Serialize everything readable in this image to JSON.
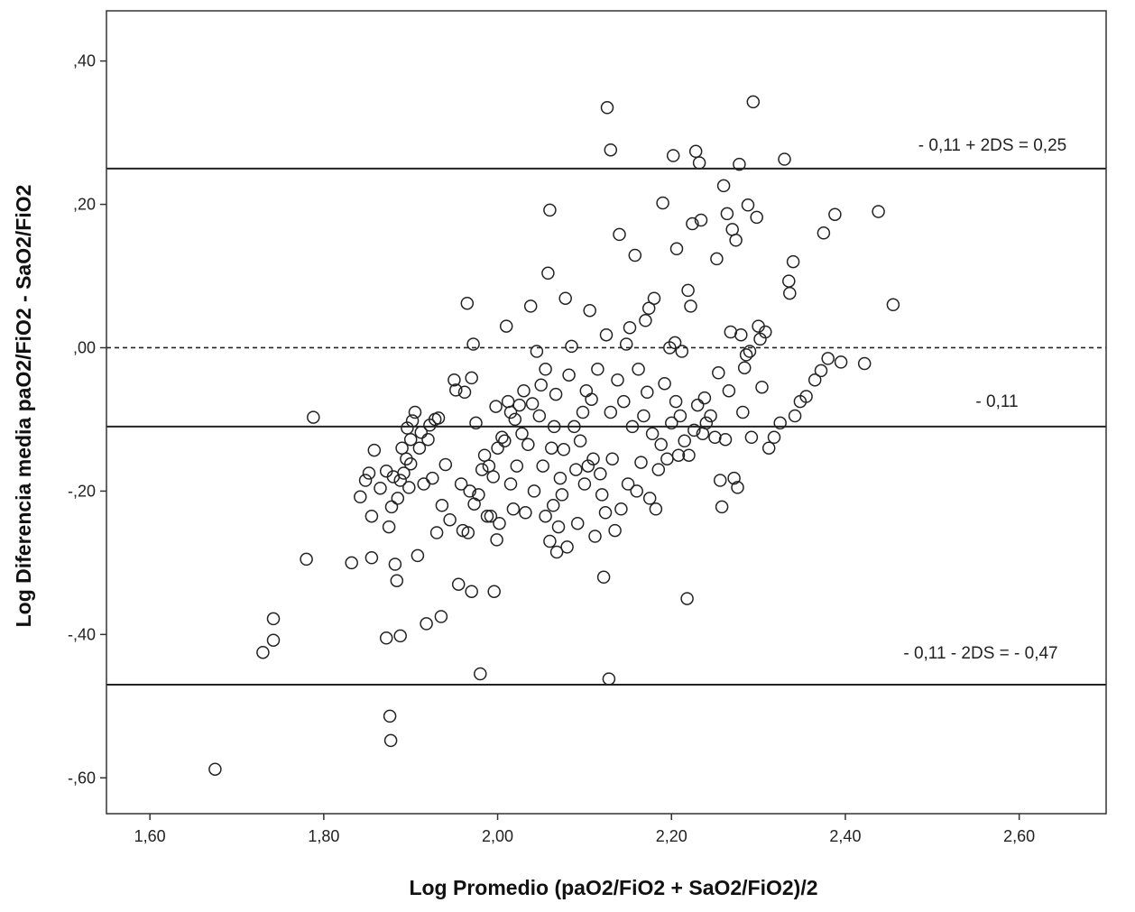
{
  "chart_data": {
    "type": "scatter",
    "title": "",
    "xlabel": "Log Promedio (paO2/FiO2 + SaO2/FiO2)/2",
    "ylabel": "Log Diferencia media paO2/FiO2 - SaO2/FiO2",
    "xlim": [
      1.55,
      2.7
    ],
    "ylim": [
      -0.65,
      0.47
    ],
    "x_ticks": [
      1.6,
      1.8,
      2.0,
      2.2,
      2.4,
      2.6
    ],
    "x_tick_labels": [
      "1,60",
      "1,80",
      "2,00",
      "2,20",
      "2,40",
      "2,60"
    ],
    "y_ticks": [
      0.4,
      0.2,
      0.0,
      -0.2,
      -0.4,
      -0.6
    ],
    "y_tick_labels": [
      ",40",
      ",20",
      ",00",
      "-,20",
      "-,40",
      "-,60"
    ],
    "grid": false,
    "legend": "none",
    "marker": "open-circle",
    "reference_lines": [
      {
        "y": 0.25,
        "style": "solid",
        "label": "- 0,11 + 2DS = 0,25"
      },
      {
        "y": 0.0,
        "style": "dashed",
        "label": ""
      },
      {
        "y": -0.11,
        "style": "solid",
        "label": "- 0,11"
      },
      {
        "y": -0.47,
        "style": "solid",
        "label": "- 0,11 - 2DS = - 0,47"
      }
    ],
    "points": [
      [
        1.675,
        -0.588
      ],
      [
        1.73,
        -0.425
      ],
      [
        1.742,
        -0.378
      ],
      [
        1.742,
        -0.408
      ],
      [
        1.78,
        -0.295
      ],
      [
        1.788,
        -0.097
      ],
      [
        1.832,
        -0.3
      ],
      [
        1.842,
        -0.208
      ],
      [
        1.848,
        -0.185
      ],
      [
        1.852,
        -0.175
      ],
      [
        1.855,
        -0.293
      ],
      [
        1.855,
        -0.235
      ],
      [
        1.858,
        -0.143
      ],
      [
        1.865,
        -0.196
      ],
      [
        1.872,
        -0.405
      ],
      [
        1.872,
        -0.172
      ],
      [
        1.875,
        -0.25
      ],
      [
        1.876,
        -0.514
      ],
      [
        1.877,
        -0.548
      ],
      [
        1.878,
        -0.222
      ],
      [
        1.88,
        -0.18
      ],
      [
        1.882,
        -0.302
      ],
      [
        1.884,
        -0.325
      ],
      [
        1.885,
        -0.21
      ],
      [
        1.888,
        -0.402
      ],
      [
        1.888,
        -0.185
      ],
      [
        1.89,
        -0.14
      ],
      [
        1.892,
        -0.175
      ],
      [
        1.895,
        -0.155
      ],
      [
        1.896,
        -0.112
      ],
      [
        1.898,
        -0.195
      ],
      [
        1.9,
        -0.162
      ],
      [
        1.9,
        -0.128
      ],
      [
        1.902,
        -0.102
      ],
      [
        1.905,
        -0.09
      ],
      [
        1.908,
        -0.29
      ],
      [
        1.91,
        -0.14
      ],
      [
        1.912,
        -0.118
      ],
      [
        1.915,
        -0.19
      ],
      [
        1.918,
        -0.385
      ],
      [
        1.92,
        -0.128
      ],
      [
        1.922,
        -0.108
      ],
      [
        1.925,
        -0.182
      ],
      [
        1.928,
        -0.1
      ],
      [
        1.93,
        -0.258
      ],
      [
        1.932,
        -0.098
      ],
      [
        1.935,
        -0.375
      ],
      [
        1.936,
        -0.22
      ],
      [
        1.94,
        -0.163
      ],
      [
        1.945,
        -0.24
      ],
      [
        1.95,
        -0.045
      ],
      [
        1.952,
        -0.059
      ],
      [
        1.955,
        -0.33
      ],
      [
        1.958,
        -0.19
      ],
      [
        1.96,
        -0.255
      ],
      [
        1.962,
        -0.062
      ],
      [
        1.965,
        0.062
      ],
      [
        1.966,
        -0.258
      ],
      [
        1.968,
        -0.2
      ],
      [
        1.97,
        -0.042
      ],
      [
        1.97,
        -0.34
      ],
      [
        1.972,
        0.005
      ],
      [
        1.973,
        -0.218
      ],
      [
        1.975,
        -0.105
      ],
      [
        1.978,
        -0.205
      ],
      [
        1.98,
        -0.455
      ],
      [
        1.982,
        -0.17
      ],
      [
        1.985,
        -0.15
      ],
      [
        1.988,
        -0.235
      ],
      [
        1.99,
        -0.165
      ],
      [
        1.992,
        -0.235
      ],
      [
        1.995,
        -0.18
      ],
      [
        1.996,
        -0.34
      ],
      [
        1.998,
        -0.082
      ],
      [
        1.999,
        -0.268
      ],
      [
        2.0,
        -0.14
      ],
      [
        2.002,
        -0.245
      ],
      [
        2.005,
        -0.125
      ],
      [
        2.008,
        -0.13
      ],
      [
        2.01,
        0.03
      ],
      [
        2.012,
        -0.075
      ],
      [
        2.015,
        -0.09
      ],
      [
        2.015,
        -0.19
      ],
      [
        2.018,
        -0.225
      ],
      [
        2.02,
        -0.1
      ],
      [
        2.022,
        -0.165
      ],
      [
        2.025,
        -0.08
      ],
      [
        2.028,
        -0.12
      ],
      [
        2.03,
        -0.06
      ],
      [
        2.032,
        -0.23
      ],
      [
        2.035,
        -0.135
      ],
      [
        2.038,
        0.058
      ],
      [
        2.04,
        -0.078
      ],
      [
        2.042,
        -0.2
      ],
      [
        2.045,
        -0.005
      ],
      [
        2.048,
        -0.095
      ],
      [
        2.05,
        -0.052
      ],
      [
        2.052,
        -0.165
      ],
      [
        2.055,
        -0.03
      ],
      [
        2.055,
        -0.235
      ],
      [
        2.058,
        0.104
      ],
      [
        2.06,
        -0.27
      ],
      [
        2.06,
        0.192
      ],
      [
        2.062,
        -0.14
      ],
      [
        2.064,
        -0.22
      ],
      [
        2.065,
        -0.11
      ],
      [
        2.067,
        -0.065
      ],
      [
        2.068,
        -0.285
      ],
      [
        2.07,
        -0.25
      ],
      [
        2.072,
        -0.182
      ],
      [
        2.074,
        -0.205
      ],
      [
        2.076,
        -0.142
      ],
      [
        2.078,
        0.069
      ],
      [
        2.08,
        -0.278
      ],
      [
        2.082,
        -0.038
      ],
      [
        2.085,
        0.002
      ],
      [
        2.088,
        -0.11
      ],
      [
        2.09,
        -0.17
      ],
      [
        2.092,
        -0.245
      ],
      [
        2.095,
        -0.13
      ],
      [
        2.098,
        -0.09
      ],
      [
        2.1,
        -0.19
      ],
      [
        2.102,
        -0.06
      ],
      [
        2.104,
        -0.165
      ],
      [
        2.106,
        0.052
      ],
      [
        2.108,
        -0.072
      ],
      [
        2.11,
        -0.155
      ],
      [
        2.112,
        -0.263
      ],
      [
        2.115,
        -0.03
      ],
      [
        2.118,
        -0.176
      ],
      [
        2.12,
        -0.205
      ],
      [
        2.122,
        -0.32
      ],
      [
        2.124,
        -0.23
      ],
      [
        2.125,
        0.018
      ],
      [
        2.126,
        0.335
      ],
      [
        2.128,
        -0.462
      ],
      [
        2.13,
        0.276
      ],
      [
        2.13,
        -0.09
      ],
      [
        2.132,
        -0.155
      ],
      [
        2.135,
        -0.255
      ],
      [
        2.138,
        -0.045
      ],
      [
        2.14,
        0.158
      ],
      [
        2.142,
        -0.225
      ],
      [
        2.145,
        -0.075
      ],
      [
        2.148,
        0.005
      ],
      [
        2.15,
        -0.19
      ],
      [
        2.152,
        0.028
      ],
      [
        2.155,
        -0.11
      ],
      [
        2.158,
        0.129
      ],
      [
        2.16,
        -0.2
      ],
      [
        2.162,
        -0.03
      ],
      [
        2.165,
        -0.16
      ],
      [
        2.168,
        -0.095
      ],
      [
        2.17,
        0.038
      ],
      [
        2.172,
        -0.062
      ],
      [
        2.174,
        0.055
      ],
      [
        2.175,
        -0.21
      ],
      [
        2.178,
        -0.12
      ],
      [
        2.18,
        0.069
      ],
      [
        2.182,
        -0.225
      ],
      [
        2.185,
        -0.17
      ],
      [
        2.188,
        -0.135
      ],
      [
        2.19,
        0.202
      ],
      [
        2.192,
        -0.05
      ],
      [
        2.195,
        -0.155
      ],
      [
        2.198,
        0.0
      ],
      [
        2.2,
        -0.105
      ],
      [
        2.202,
        0.268
      ],
      [
        2.204,
        0.007
      ],
      [
        2.205,
        -0.075
      ],
      [
        2.206,
        0.138
      ],
      [
        2.208,
        -0.15
      ],
      [
        2.21,
        -0.095
      ],
      [
        2.212,
        -0.005
      ],
      [
        2.215,
        -0.13
      ],
      [
        2.218,
        -0.35
      ],
      [
        2.219,
        0.08
      ],
      [
        2.22,
        -0.15
      ],
      [
        2.222,
        0.058
      ],
      [
        2.224,
        0.173
      ],
      [
        2.226,
        -0.115
      ],
      [
        2.228,
        0.274
      ],
      [
        2.23,
        -0.08
      ],
      [
        2.232,
        0.258
      ],
      [
        2.234,
        0.178
      ],
      [
        2.236,
        -0.12
      ],
      [
        2.238,
        -0.07
      ],
      [
        2.24,
        -0.105
      ],
      [
        2.245,
        -0.095
      ],
      [
        2.25,
        -0.125
      ],
      [
        2.252,
        0.124
      ],
      [
        2.254,
        -0.035
      ],
      [
        2.256,
        -0.185
      ],
      [
        2.258,
        -0.222
      ],
      [
        2.26,
        0.226
      ],
      [
        2.262,
        -0.128
      ],
      [
        2.264,
        0.187
      ],
      [
        2.266,
        -0.06
      ],
      [
        2.268,
        0.022
      ],
      [
        2.27,
        0.165
      ],
      [
        2.272,
        -0.182
      ],
      [
        2.274,
        0.15
      ],
      [
        2.276,
        -0.195
      ],
      [
        2.278,
        0.256
      ],
      [
        2.28,
        0.018
      ],
      [
        2.282,
        -0.09
      ],
      [
        2.284,
        -0.028
      ],
      [
        2.286,
        -0.01
      ],
      [
        2.288,
        0.199
      ],
      [
        2.29,
        -0.005
      ],
      [
        2.292,
        -0.125
      ],
      [
        2.294,
        0.343
      ],
      [
        2.298,
        0.182
      ],
      [
        2.3,
        0.03
      ],
      [
        2.302,
        0.012
      ],
      [
        2.304,
        -0.055
      ],
      [
        2.308,
        0.022
      ],
      [
        2.312,
        -0.14
      ],
      [
        2.318,
        -0.125
      ],
      [
        2.325,
        -0.105
      ],
      [
        2.33,
        0.263
      ],
      [
        2.335,
        0.093
      ],
      [
        2.336,
        0.076
      ],
      [
        2.34,
        0.12
      ],
      [
        2.342,
        -0.095
      ],
      [
        2.348,
        -0.075
      ],
      [
        2.355,
        -0.068
      ],
      [
        2.365,
        -0.045
      ],
      [
        2.372,
        -0.032
      ],
      [
        2.375,
        0.16
      ],
      [
        2.38,
        -0.015
      ],
      [
        2.388,
        0.186
      ],
      [
        2.395,
        -0.02
      ],
      [
        2.422,
        -0.022
      ],
      [
        2.438,
        0.19
      ],
      [
        2.455,
        0.06
      ]
    ]
  }
}
